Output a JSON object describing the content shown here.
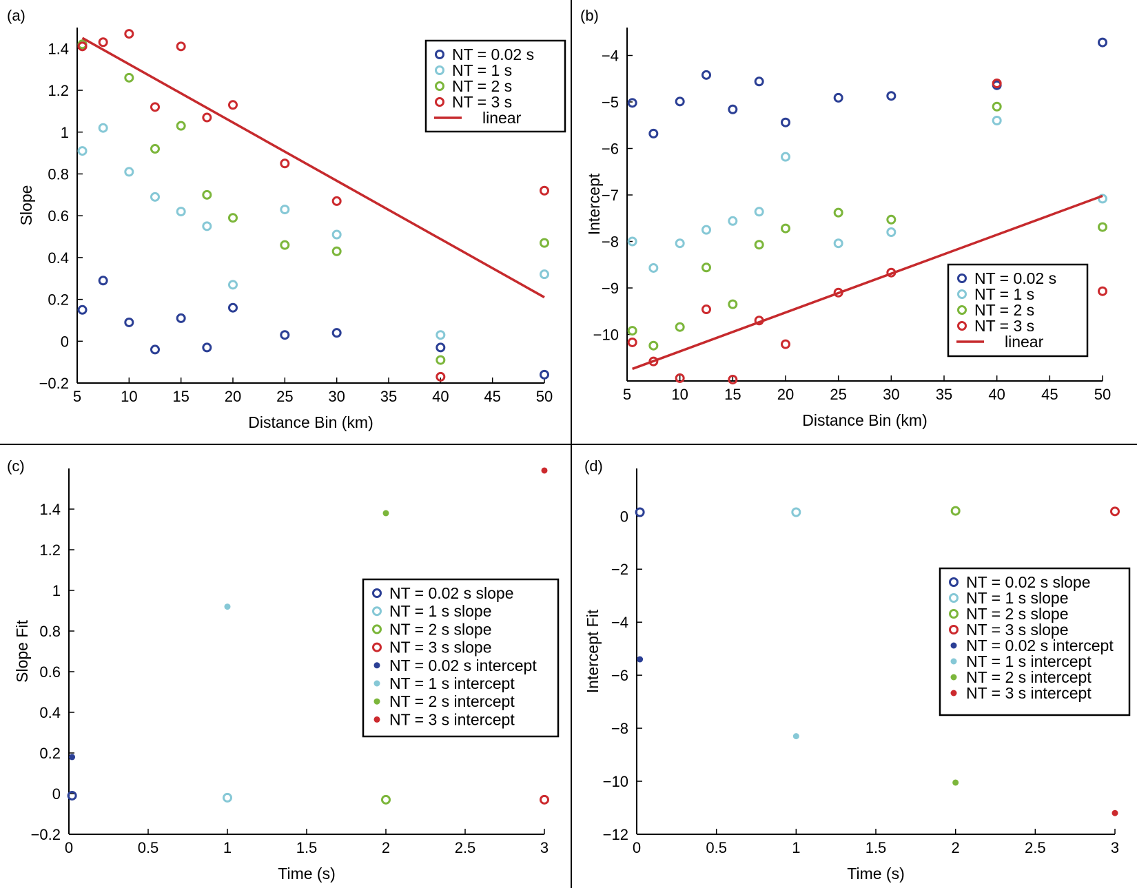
{
  "colors": {
    "nt002": "#2b3f95",
    "nt1": "#86c8d6",
    "nt2": "#7cb63b",
    "nt3": "#cc2a2e",
    "linear": "#c62a2d"
  },
  "chart_data": [
    {
      "panel": "(a)",
      "type": "scatter",
      "xlabel": "Distance Bin (km)",
      "ylabel": "Slope",
      "xlim": [
        5,
        50
      ],
      "ylim": [
        -0.2,
        1.5
      ],
      "xticks": [
        "5",
        "10",
        "15",
        "20",
        "25",
        "30",
        "35",
        "40",
        "45",
        "50"
      ],
      "yticks": [
        "−0.2",
        "0",
        "0.2",
        "0.4",
        "0.6",
        "0.8",
        "1",
        "1.2",
        "1.4"
      ],
      "legend_position": "top-right",
      "legend": [
        "NΤ = 0.02 s",
        "NΤ = 1 s",
        "NΤ = 2 s",
        "NΤ = 3 s",
        "linear"
      ],
      "series": [
        {
          "name": "NΤ = 0.02 s",
          "color_key": "nt002",
          "marker": "open",
          "x": [
            5.5,
            7.5,
            10,
            12.5,
            15,
            17.5,
            20,
            25,
            30,
            40,
            50
          ],
          "y": [
            0.15,
            0.29,
            0.09,
            -0.04,
            0.11,
            -0.03,
            0.16,
            0.03,
            0.04,
            -0.03,
            -0.16
          ]
        },
        {
          "name": "NΤ = 1 s",
          "color_key": "nt1",
          "marker": "open",
          "x": [
            5.5,
            7.5,
            10,
            12.5,
            15,
            17.5,
            20,
            25,
            30,
            40,
            50
          ],
          "y": [
            0.91,
            1.02,
            0.81,
            0.69,
            0.62,
            0.55,
            0.27,
            0.63,
            0.51,
            0.03,
            0.32
          ]
        },
        {
          "name": "NΤ = 2 s",
          "color_key": "nt2",
          "marker": "open",
          "x": [
            5.5,
            10,
            12.5,
            15,
            17.5,
            20,
            25,
            30,
            40,
            50
          ],
          "y": [
            1.42,
            1.26,
            0.92,
            1.03,
            0.7,
            0.59,
            0.46,
            0.43,
            -0.09,
            0.47
          ]
        },
        {
          "name": "NΤ = 3 s",
          "color_key": "nt3",
          "marker": "open",
          "x": [
            5.5,
            7.5,
            10,
            12.5,
            15,
            17.5,
            20,
            25,
            30,
            40,
            50
          ],
          "y": [
            1.41,
            1.43,
            1.47,
            1.12,
            1.41,
            1.07,
            1.13,
            0.85,
            0.67,
            -0.17,
            0.72
          ]
        },
        {
          "name": "linear",
          "color_key": "linear",
          "marker": "line",
          "x": [
            5.5,
            50
          ],
          "y": [
            1.45,
            0.21
          ]
        }
      ]
    },
    {
      "panel": "(b)",
      "type": "scatter",
      "xlabel": "Distance Bin (km)",
      "ylabel": "Intercept",
      "xlim": [
        5,
        50
      ],
      "ylim": [
        -11,
        -3.4
      ],
      "xticks": [
        "5",
        "10",
        "15",
        "20",
        "25",
        "30",
        "35",
        "40",
        "45",
        "50"
      ],
      "yticks": [
        "−10",
        "−9",
        "−8",
        "−7",
        "−6",
        "−5",
        "−4"
      ],
      "legend_position": "bottom-right",
      "legend": [
        "NΤ = 0.02 s",
        "NΤ = 1 s",
        "NΤ = 2 s",
        "NΤ = 3 s",
        "linear"
      ],
      "series": [
        {
          "name": "NΤ = 0.02 s",
          "color_key": "nt002",
          "marker": "open",
          "x": [
            5.5,
            7.5,
            10,
            12.5,
            15,
            17.5,
            20,
            25,
            30,
            40,
            50
          ],
          "y": [
            -5.02,
            -5.68,
            -4.99,
            -4.42,
            -5.16,
            -4.56,
            -5.44,
            -4.91,
            -4.87,
            -4.64,
            -3.72
          ]
        },
        {
          "name": "NΤ = 1 s",
          "color_key": "nt1",
          "marker": "open",
          "x": [
            5.5,
            7.5,
            10,
            12.5,
            15,
            17.5,
            20,
            25,
            30,
            40,
            50
          ],
          "y": [
            -8,
            -8.57,
            -8.04,
            -7.75,
            -7.56,
            -7.36,
            -6.18,
            -8.04,
            -7.8,
            -5.4,
            -7.08
          ]
        },
        {
          "name": "NΤ = 2 s",
          "color_key": "nt2",
          "marker": "open",
          "x": [
            5.5,
            7.5,
            10,
            12.5,
            15,
            17.5,
            20,
            25,
            30,
            40,
            50
          ],
          "y": [
            -9.92,
            -10.24,
            -9.84,
            -8.56,
            -9.35,
            -8.07,
            -7.72,
            -7.38,
            -7.53,
            -5.1,
            -7.69
          ]
        },
        {
          "name": "NΤ = 3 s",
          "color_key": "nt3",
          "marker": "open",
          "x": [
            5.5,
            7.5,
            10,
            12.5,
            15,
            17.5,
            20,
            25,
            30,
            40,
            50
          ],
          "y": [
            -10.17,
            -10.58,
            -10.94,
            -9.46,
            -10.97,
            -9.7,
            -10.21,
            -9.1,
            -8.67,
            -4.6,
            -9.07
          ]
        },
        {
          "name": "linear",
          "color_key": "linear",
          "marker": "line",
          "x": [
            5.5,
            50
          ],
          "y": [
            -10.74,
            -7.02
          ]
        }
      ]
    },
    {
      "panel": "(c)",
      "type": "scatter",
      "xlabel": "Time (s)",
      "ylabel": "Slope Fit",
      "xlim": [
        0,
        3
      ],
      "ylim": [
        -0.2,
        1.6
      ],
      "xticks": [
        "0",
        "0.5",
        "1",
        "1.5",
        "2",
        "2.5",
        "3"
      ],
      "yticks": [
        "−0.2",
        "0",
        "0.2",
        "0.4",
        "0.6",
        "0.8",
        "1",
        "1.2",
        "1.4"
      ],
      "legend_position": "right",
      "legend": [
        "NΤ = 0.02 s slope",
        "NΤ = 1 s slope",
        "NΤ = 2 s slope",
        "NΤ = 3 s slope",
        "NΤ = 0.02 s intercept",
        "NΤ = 1 s intercept",
        "NΤ = 2 s intercept",
        "NΤ = 3 s intercept"
      ],
      "series": [
        {
          "name": "NΤ = 0.02 s slope",
          "color_key": "nt002",
          "marker": "open",
          "x": [
            0.02
          ],
          "y": [
            -0.01
          ]
        },
        {
          "name": "NΤ = 1 s slope",
          "color_key": "nt1",
          "marker": "open",
          "x": [
            1
          ],
          "y": [
            -0.02
          ]
        },
        {
          "name": "NΤ = 2 s slope",
          "color_key": "nt2",
          "marker": "open",
          "x": [
            2
          ],
          "y": [
            -0.03
          ]
        },
        {
          "name": "NΤ = 3 s slope",
          "color_key": "nt3",
          "marker": "open",
          "x": [
            3
          ],
          "y": [
            -0.03
          ]
        },
        {
          "name": "NΤ = 0.02 s intercept",
          "color_key": "nt002",
          "marker": "filled",
          "x": [
            0.02
          ],
          "y": [
            0.18
          ]
        },
        {
          "name": "NΤ = 1 s intercept",
          "color_key": "nt1",
          "marker": "filled",
          "x": [
            1
          ],
          "y": [
            0.92
          ]
        },
        {
          "name": "NΤ = 2 s intercept",
          "color_key": "nt2",
          "marker": "filled",
          "x": [
            2
          ],
          "y": [
            1.38
          ]
        },
        {
          "name": "NΤ = 3 s intercept",
          "color_key": "nt3",
          "marker": "filled",
          "x": [
            3
          ],
          "y": [
            1.59
          ]
        }
      ]
    },
    {
      "panel": "(d)",
      "type": "scatter",
      "xlabel": "Time (s)",
      "ylabel": "Intercept Fit",
      "xlim": [
        0,
        3
      ],
      "ylim": [
        -12,
        1.8
      ],
      "xticks": [
        "0",
        "0.5",
        "1",
        "1.5",
        "2",
        "2.5",
        "3"
      ],
      "yticks": [
        "−12",
        "−10",
        "−8",
        "−6",
        "−4",
        "−2",
        "0"
      ],
      "legend_position": "right",
      "legend": [
        "NΤ = 0.02 s slope",
        "NΤ = 1 s slope",
        "NΤ = 2 s slope",
        "NΤ = 3 s slope",
        "NΤ = 0.02 s intercept",
        "NΤ = 1 s intercept",
        "NΤ = 2 s intercept",
        "NΤ = 3 s intercept"
      ],
      "series": [
        {
          "name": "NΤ = 0.02 s slope",
          "color_key": "nt002",
          "marker": "open",
          "x": [
            0.02
          ],
          "y": [
            0.15
          ]
        },
        {
          "name": "NΤ = 1 s slope",
          "color_key": "nt1",
          "marker": "open",
          "x": [
            1
          ],
          "y": [
            0.15
          ]
        },
        {
          "name": "NΤ = 2 s slope",
          "color_key": "nt2",
          "marker": "open",
          "x": [
            2
          ],
          "y": [
            0.2
          ]
        },
        {
          "name": "NΤ = 3 s slope",
          "color_key": "nt3",
          "marker": "open",
          "x": [
            3
          ],
          "y": [
            0.18
          ]
        },
        {
          "name": "NΤ = 0.02 s intercept",
          "color_key": "nt002",
          "marker": "filled",
          "x": [
            0.02
          ],
          "y": [
            -5.4
          ]
        },
        {
          "name": "NΤ = 1 s intercept",
          "color_key": "nt1",
          "marker": "filled",
          "x": [
            1
          ],
          "y": [
            -8.3
          ]
        },
        {
          "name": "NΤ = 2 s intercept",
          "color_key": "nt2",
          "marker": "filled",
          "x": [
            2
          ],
          "y": [
            -10.05
          ]
        },
        {
          "name": "NΤ = 3 s intercept",
          "color_key": "nt3",
          "marker": "filled",
          "x": [
            3
          ],
          "y": [
            -11.2
          ]
        }
      ]
    }
  ]
}
